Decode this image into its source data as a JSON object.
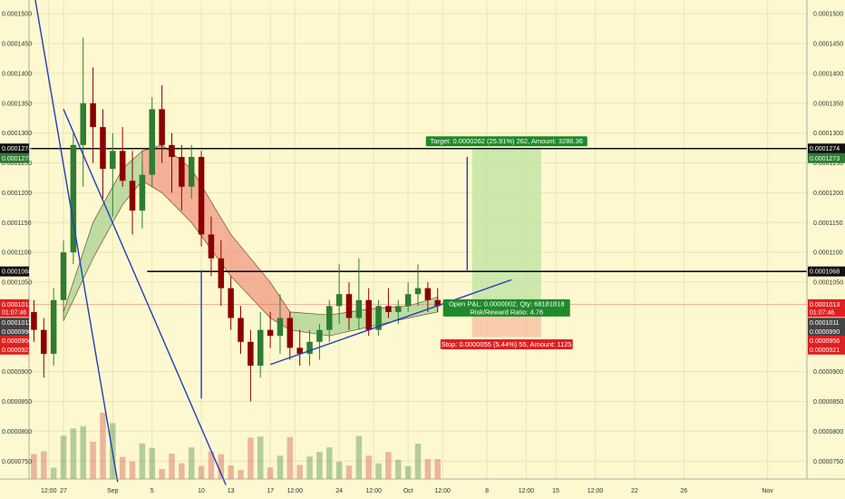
{
  "chart_data": {
    "type": "candlestick",
    "title": "",
    "xlabel": "",
    "ylabel": "",
    "ylim": [
      7.2e-05,
      0.000152
    ],
    "colors": {
      "background": "#fdf8cf",
      "bull": "#2e7d32",
      "bear": "#8b0000",
      "trendline": "#1f3fbf",
      "level": "#111111",
      "target_fill": "#bfe3a3",
      "stop_fill": "#f6c0a0",
      "target_label": "#1e8a2a",
      "stop_label": "#e02020",
      "cloud_bull": "#9ccc8a",
      "cloud_bear": "#f08a78"
    },
    "y_ticks": [
      "0.0001500",
      "0.0001450",
      "0.0001400",
      "0.0001350",
      "0.0001300",
      "0.0001250",
      "0.0001200",
      "0.0001150",
      "0.0001100",
      "0.0001050",
      "0.0000900",
      "0.0000850",
      "0.0000800",
      "0.0000750"
    ],
    "y_tick_values": [
      0.00015,
      0.000145,
      0.00014,
      0.000135,
      0.00013,
      0.000125,
      0.00012,
      0.000115,
      0.00011,
      0.000105,
      9e-05,
      8.5e-05,
      8e-05,
      7.5e-05
    ],
    "x_ticks": [
      "12:00",
      "27",
      "Sep",
      "5",
      "10",
      "13",
      "17",
      "12:00",
      "24",
      "12:00",
      "Oct",
      "12:00",
      "8",
      "12:00",
      "15",
      "12:00",
      "22",
      "26",
      "Nov"
    ],
    "x_tick_days": [
      1.5,
      3,
      8,
      12,
      17,
      20,
      24,
      26.5,
      31,
      34.5,
      38,
      41.5,
      46,
      50,
      53,
      57,
      61,
      66,
      74.5
    ],
    "x_data_range": [
      -0.5,
      78.5
    ],
    "left_tags": [
      {
        "label": "0.0001274",
        "value": 0.0001274,
        "color": "#111111"
      },
      {
        "label": "0.0001273",
        "value": 0.0001258,
        "color": "#2e7d32"
      },
      {
        "label": "0.0001068",
        "value": 0.0001068,
        "color": "#111111"
      },
      {
        "label": "0.0001013",
        "value": 0.0001013,
        "color": "#e02020"
      },
      {
        "label": "01:07:46",
        "value": 0.0001,
        "color": "#e02020"
      },
      {
        "label": "0.0001011",
        "value": 9.82e-05,
        "color": "#444444"
      },
      {
        "label": "0.0000990",
        "value": 9.67e-05,
        "color": "#444444"
      },
      {
        "label": "0.0000956",
        "value": 9.52e-05,
        "color": "#e02020"
      },
      {
        "label": "0.0000921",
        "value": 9.37e-05,
        "color": "#e02020"
      }
    ],
    "right_tags": [
      {
        "label": "0.0001274",
        "value": 0.0001274,
        "color": "#111111"
      },
      {
        "label": "0.0001273",
        "value": 0.0001258,
        "color": "#2e7d32"
      },
      {
        "label": "0.0001068",
        "value": 0.0001068,
        "color": "#111111"
      },
      {
        "label": "0.0001013",
        "value": 0.0001013,
        "color": "#e02020"
      },
      {
        "label": "01:07:46",
        "value": 0.0001,
        "color": "#e02020"
      },
      {
        "label": "0.0001011",
        "value": 9.82e-05,
        "color": "#444444"
      },
      {
        "label": "0.0000990",
        "value": 9.67e-05,
        "color": "#444444"
      },
      {
        "label": "0.0000956",
        "value": 9.52e-05,
        "color": "#e02020"
      },
      {
        "label": "0.0000921",
        "value": 9.37e-05,
        "color": "#e02020"
      }
    ],
    "levels": [
      {
        "name": "resistance-high",
        "value": 0.0001274,
        "from_day": -0.5,
        "to_day": 78.5
      },
      {
        "name": "resistance-low",
        "value": 0.0001068,
        "from_day": 11.5,
        "to_day": 78.5
      },
      {
        "name": "current-price",
        "value": 0.0001013,
        "from_day": -0.5,
        "to_day": 78.5
      }
    ],
    "trendlines": [
      {
        "name": "downtrend-1",
        "from": [
          -0.5,
          0.0001585
        ],
        "to": [
          8.5,
          7.15e-05
        ]
      },
      {
        "name": "downtrend-2",
        "from": [
          3,
          0.000134
        ],
        "to": [
          19.5,
          7.1e-05
        ]
      },
      {
        "name": "rising-support",
        "from": [
          24,
          9.12e-05
        ],
        "to": [
          48.5,
          0.0001054
        ]
      },
      {
        "name": "bounce-marker",
        "from": [
          17,
          8.55e-05
        ],
        "to": [
          17,
          0.000107
        ]
      },
      {
        "name": "target-marker",
        "from": [
          44,
          0.000107
        ],
        "to": [
          44,
          0.000126
        ]
      }
    ],
    "position": {
      "from_day": 44.5,
      "to_day": 51.5,
      "entry": 0.0001013,
      "target": 0.0001274,
      "stop": 9.58e-05,
      "target_text": "Target: 0.0000262 (25.91%) 262, Amount: 3286.36",
      "pnl_text": "Open P&L: 0.0000002, Qty: 68181818",
      "rr_text": "Risk/Reward Ratio: 4.76",
      "stop_text": "Stop: 0.0000055 (5.44%) 55, Amount: 1125"
    },
    "candles": [
      {
        "o": 0.0001,
        "h": 0.000102,
        "l": 9.5e-05,
        "c": 9.7e-05
      },
      {
        "o": 9.7e-05,
        "h": 9.9e-05,
        "l": 8.9e-05,
        "c": 9.3e-05
      },
      {
        "o": 9.3e-05,
        "h": 0.000104,
        "l": 9.1e-05,
        "c": 0.000102
      },
      {
        "o": 0.000102,
        "h": 0.000112,
        "l": 0.0001,
        "c": 0.00011
      },
      {
        "o": 0.00011,
        "h": 0.00013,
        "l": 0.000108,
        "c": 0.000128
      },
      {
        "o": 0.000128,
        "h": 0.000146,
        "l": 0.000121,
        "c": 0.000135
      },
      {
        "o": 0.000135,
        "h": 0.000141,
        "l": 0.000125,
        "c": 0.000131
      },
      {
        "o": 0.000131,
        "h": 0.000134,
        "l": 0.000119,
        "c": 0.000124
      },
      {
        "o": 0.000124,
        "h": 0.00013,
        "l": 0.000116,
        "c": 0.000127
      },
      {
        "o": 0.000127,
        "h": 0.000131,
        "l": 0.000121,
        "c": 0.000122
      },
      {
        "o": 0.000122,
        "h": 0.000127,
        "l": 0.000113,
        "c": 0.000117
      },
      {
        "o": 0.000117,
        "h": 0.000125,
        "l": 0.000114,
        "c": 0.000123
      },
      {
        "o": 0.000123,
        "h": 0.000136,
        "l": 0.000121,
        "c": 0.000134
      },
      {
        "o": 0.000134,
        "h": 0.000138,
        "l": 0.000125,
        "c": 0.000128
      },
      {
        "o": 0.000128,
        "h": 0.00013,
        "l": 0.00012,
        "c": 0.000126
      },
      {
        "o": 0.000126,
        "h": 0.000128,
        "l": 0.000117,
        "c": 0.000121
      },
      {
        "o": 0.000121,
        "h": 0.000128,
        "l": 0.000119,
        "c": 0.000126
      },
      {
        "o": 0.000126,
        "h": 0.000127,
        "l": 0.000111,
        "c": 0.000113
      },
      {
        "o": 0.000113,
        "h": 0.000116,
        "l": 0.000106,
        "c": 0.000109
      },
      {
        "o": 0.000109,
        "h": 0.000112,
        "l": 0.000101,
        "c": 0.000104
      },
      {
        "o": 0.000104,
        "h": 0.000106,
        "l": 9.7e-05,
        "c": 9.9e-05
      },
      {
        "o": 9.9e-05,
        "h": 0.000101,
        "l": 9.3e-05,
        "c": 9.5e-05
      },
      {
        "o": 9.5e-05,
        "h": 9.7e-05,
        "l": 8.5e-05,
        "c": 9.1e-05
      },
      {
        "o": 9.1e-05,
        "h": 0.0001,
        "l": 8.9e-05,
        "c": 9.7e-05
      },
      {
        "o": 9.7e-05,
        "h": 0.0001,
        "l": 9.4e-05,
        "c": 9.6e-05
      },
      {
        "o": 9.6e-05,
        "h": 0.000103,
        "l": 9.3e-05,
        "c": 9.9e-05
      },
      {
        "o": 9.9e-05,
        "h": 0.0001,
        "l": 9.2e-05,
        "c": 9.4e-05
      },
      {
        "o": 9.4e-05,
        "h": 9.7e-05,
        "l": 9.1e-05,
        "c": 9.3e-05
      },
      {
        "o": 9.3e-05,
        "h": 9.7e-05,
        "l": 9.1e-05,
        "c": 9.5e-05
      },
      {
        "o": 9.5e-05,
        "h": 9.8e-05,
        "l": 9.2e-05,
        "c": 9.7e-05
      },
      {
        "o": 9.7e-05,
        "h": 0.000102,
        "l": 9.5e-05,
        "c": 0.000101
      },
      {
        "o": 0.000101,
        "h": 0.000108,
        "l": 9.8e-05,
        "c": 0.000103
      },
      {
        "o": 0.000103,
        "h": 0.000105,
        "l": 9.7e-05,
        "c": 9.9e-05
      },
      {
        "o": 9.9e-05,
        "h": 0.000109,
        "l": 9.7e-05,
        "c": 0.000102
      },
      {
        "o": 0.000102,
        "h": 0.000104,
        "l": 9.6e-05,
        "c": 9.7e-05
      },
      {
        "o": 9.7e-05,
        "h": 0.000102,
        "l": 9.6e-05,
        "c": 0.000101
      },
      {
        "o": 0.000101,
        "h": 0.000104,
        "l": 9.9e-05,
        "c": 0.0001
      },
      {
        "o": 0.0001,
        "h": 0.000102,
        "l": 9.8e-05,
        "c": 0.000101
      },
      {
        "o": 0.000101,
        "h": 0.000105,
        "l": 0.0001,
        "c": 0.000103
      },
      {
        "o": 0.000103,
        "h": 0.000108,
        "l": 0.000101,
        "c": 0.000104
      },
      {
        "o": 0.000104,
        "h": 0.000105,
        "l": 0.0001,
        "c": 0.000102
      },
      {
        "o": 0.000102,
        "h": 0.000104,
        "l": 0.0001,
        "c": 0.000101
      }
    ],
    "volume_note": "volume bars shown along the bottom, green for up candles and red for down candles"
  }
}
